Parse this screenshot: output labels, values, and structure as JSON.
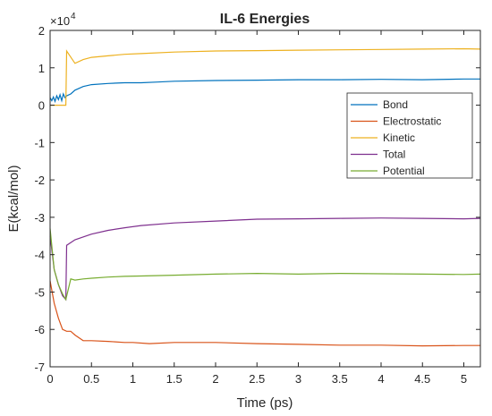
{
  "chart_data": {
    "type": "line",
    "title": "IL-6 Energies",
    "xlabel": "Time (ps)",
    "ylabel": "E(kcal/mol)",
    "y_exponent_label": "×10",
    "y_exponent": "4",
    "xlim": [
      0,
      5.2
    ],
    "ylim": [
      -7,
      2
    ],
    "x_ticks": [
      "0",
      "0.5",
      "1",
      "1.5",
      "2",
      "2.5",
      "3",
      "3.5",
      "4",
      "4.5",
      "5"
    ],
    "x_tick_values": [
      0,
      0.5,
      1,
      1.5,
      2,
      2.5,
      3,
      3.5,
      4,
      4.5,
      5
    ],
    "y_ticks": [
      "2",
      "1",
      "0",
      "-1",
      "-2",
      "-3",
      "-4",
      "-5",
      "-6",
      "-7"
    ],
    "y_tick_values": [
      2,
      1,
      0,
      -1,
      -2,
      -3,
      -4,
      -5,
      -6,
      -7
    ],
    "grid": false,
    "legend_position": "top-right",
    "series": [
      {
        "name": "Bond",
        "color": "#0072BD",
        "x": [
          0,
          0.02,
          0.04,
          0.06,
          0.08,
          0.1,
          0.12,
          0.14,
          0.16,
          0.18,
          0.2,
          0.25,
          0.3,
          0.4,
          0.5,
          0.7,
          0.9,
          1.1,
          1.3,
          1.5,
          2.0,
          2.5,
          3.0,
          3.5,
          4.0,
          4.5,
          5.0,
          5.2
        ],
        "y": [
          0.2,
          0.12,
          0.22,
          0.1,
          0.25,
          0.15,
          0.28,
          0.12,
          0.3,
          0.2,
          0.25,
          0.3,
          0.4,
          0.5,
          0.55,
          0.58,
          0.6,
          0.6,
          0.62,
          0.64,
          0.66,
          0.67,
          0.68,
          0.68,
          0.69,
          0.68,
          0.7,
          0.7
        ]
      },
      {
        "name": "Electrostatic",
        "color": "#D95319",
        "x": [
          0,
          0.05,
          0.1,
          0.15,
          0.2,
          0.25,
          0.3,
          0.4,
          0.5,
          0.7,
          0.9,
          1.0,
          1.2,
          1.5,
          2.0,
          2.5,
          3.0,
          3.5,
          4.0,
          4.5,
          5.0,
          5.2
        ],
        "y": [
          -4.7,
          -5.3,
          -5.7,
          -6.0,
          -6.05,
          -6.05,
          -6.15,
          -6.3,
          -6.3,
          -6.32,
          -6.35,
          -6.35,
          -6.38,
          -6.35,
          -6.35,
          -6.38,
          -6.4,
          -6.42,
          -6.42,
          -6.44,
          -6.43,
          -6.43
        ]
      },
      {
        "name": "Kinetic",
        "color": "#EDB120",
        "x": [
          0,
          0.19,
          0.2,
          0.3,
          0.4,
          0.5,
          0.7,
          0.9,
          1.1,
          1.5,
          2.0,
          2.5,
          3.0,
          3.5,
          4.0,
          4.5,
          5.0,
          5.2
        ],
        "y": [
          0,
          0,
          1.45,
          1.12,
          1.22,
          1.28,
          1.32,
          1.36,
          1.38,
          1.42,
          1.45,
          1.46,
          1.47,
          1.48,
          1.49,
          1.5,
          1.51,
          1.5
        ]
      },
      {
        "name": "Total",
        "color": "#7E2F8E",
        "x": [
          0,
          0.05,
          0.1,
          0.15,
          0.19,
          0.2,
          0.3,
          0.5,
          0.7,
          0.9,
          1.1,
          1.5,
          2.0,
          2.5,
          3.0,
          3.5,
          4.0,
          4.5,
          5.0,
          5.2
        ],
        "y": [
          -3.5,
          -4.4,
          -4.8,
          -5.1,
          -5.2,
          -3.75,
          -3.6,
          -3.45,
          -3.35,
          -3.28,
          -3.22,
          -3.15,
          -3.1,
          -3.05,
          -3.04,
          -3.03,
          -3.02,
          -3.03,
          -3.04,
          -3.03
        ]
      },
      {
        "name": "Potential",
        "color": "#77AC30",
        "x": [
          0,
          0.05,
          0.1,
          0.15,
          0.19,
          0.25,
          0.3,
          0.4,
          0.5,
          0.7,
          0.9,
          1.1,
          1.5,
          2.0,
          2.5,
          3.0,
          3.5,
          4.0,
          4.5,
          5.0,
          5.2
        ],
        "y": [
          -3.3,
          -4.4,
          -4.8,
          -5.05,
          -5.2,
          -4.65,
          -4.68,
          -4.65,
          -4.63,
          -4.6,
          -4.58,
          -4.57,
          -4.55,
          -4.52,
          -4.5,
          -4.52,
          -4.5,
          -4.51,
          -4.52,
          -4.53,
          -4.52
        ]
      }
    ]
  }
}
